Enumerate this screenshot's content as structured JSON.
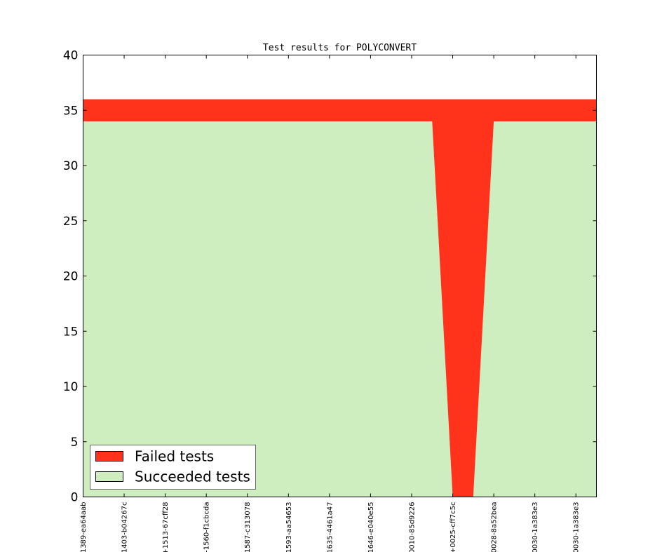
{
  "chart_data": {
    "type": "area",
    "title": "Test results for POLYCONVERT",
    "xlabel": "",
    "ylabel": "",
    "ylim": [
      0,
      40
    ],
    "yticks": [
      0,
      5,
      10,
      15,
      20,
      25,
      30,
      35,
      40
    ],
    "stacked": true,
    "grid": false,
    "legend_position": "lower-left",
    "xticklabels": [
      "1389-ea64aab",
      "1403-b04267c",
      "+1513-67cff28",
      "-1560-f1cbcda",
      "1587-c313078",
      "1593-aa54653",
      "1635-4461a47",
      "1646-e040e55",
      "0010-85d9226",
      "+0025-cff7c5c",
      "0028-8a52bea",
      "0030-1a383e3",
      "0030-1a383e3"
    ],
    "x": [
      0,
      0.5,
      1,
      1.5,
      2,
      2.5,
      3,
      3.5,
      4,
      4.5,
      5,
      5.5,
      6,
      6.5,
      7,
      7.5,
      8,
      8.5,
      9,
      9.5,
      10,
      10.5,
      11,
      11.5,
      12,
      12.5
    ],
    "series": [
      {
        "name": "Succeeded tests",
        "color": "#cfeebf",
        "values": [
          34,
          34,
          34,
          34,
          34,
          34,
          34,
          34,
          34,
          34,
          34,
          34,
          34,
          34,
          34,
          34,
          34,
          34,
          0,
          0,
          34,
          34,
          34,
          34,
          34,
          34
        ]
      },
      {
        "name": "Failed tests",
        "color": "#ff321b",
        "values": [
          2,
          2,
          2,
          2,
          2,
          2,
          2,
          2,
          2,
          2,
          2,
          2,
          2,
          2,
          2,
          2,
          2,
          2,
          36,
          36,
          2,
          2,
          2,
          2,
          2,
          2
        ]
      }
    ]
  }
}
